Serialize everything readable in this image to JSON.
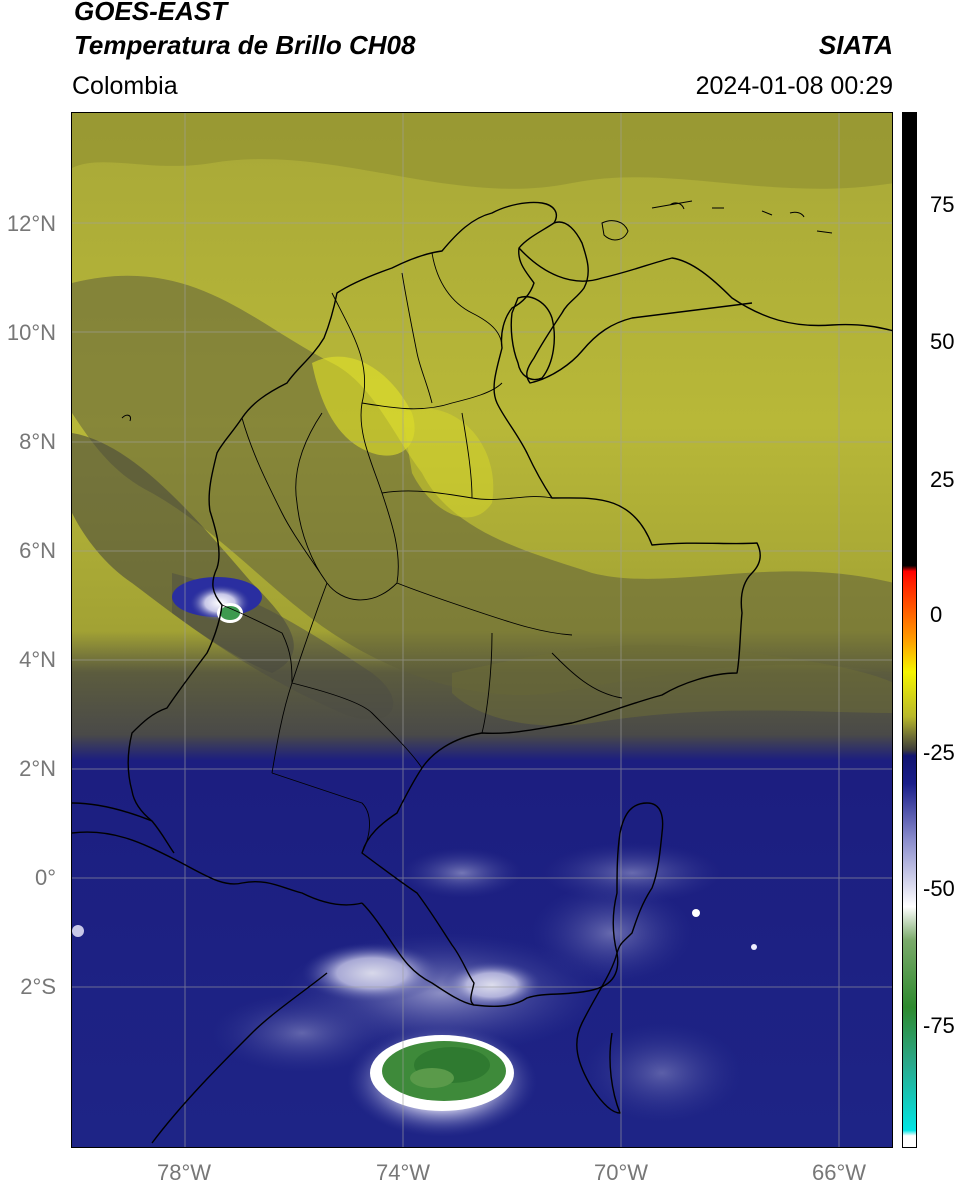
{
  "header": {
    "satellite": "GOES-EAST",
    "product": "Temperatura de Brillo CH08",
    "region": "Colombia",
    "agency": "SIATA",
    "datetime": "2024-01-08 00:29"
  },
  "axes": {
    "lat_labels": [
      "12°N",
      "10°N",
      "8°N",
      "6°N",
      "4°N",
      "2°N",
      "0°",
      "2°S"
    ],
    "lon_labels": [
      "78°W",
      "74°W",
      "70°W",
      "66°W"
    ]
  },
  "colorbar": {
    "ticks": [
      "75",
      "50",
      "25",
      "0",
      "-25",
      "-50",
      "-75"
    ],
    "range": [
      -95,
      90
    ],
    "stops": [
      {
        "v": -95,
        "c": "#ffffff"
      },
      {
        "v": -93,
        "c": "#ffffff"
      },
      {
        "v": -92,
        "c": "#00e5e5"
      },
      {
        "v": -80,
        "c": "#2aa88a"
      },
      {
        "v": -70,
        "c": "#2e8a2e"
      },
      {
        "v": -58,
        "c": "#7aaa6a"
      },
      {
        "v": -52,
        "c": "#ffffff"
      },
      {
        "v": -40,
        "c": "#8a8ccc"
      },
      {
        "v": -30,
        "c": "#1a1e8a"
      },
      {
        "v": -25,
        "c": "#111470"
      },
      {
        "v": -24,
        "c": "#3c3c3c"
      },
      {
        "v": -18,
        "c": "#b8b82a"
      },
      {
        "v": -10,
        "c": "#f5f500"
      },
      {
        "v": -4,
        "c": "#ff9a00"
      },
      {
        "v": 6,
        "c": "#ff2000"
      },
      {
        "v": 8,
        "c": "#ff0000"
      },
      {
        "v": 9,
        "c": "#000000"
      },
      {
        "v": 90,
        "c": "#000000"
      }
    ]
  },
  "colors": {
    "olive_light": "#c2c236",
    "olive_mid": "#9a9a32",
    "olive_dark": "#66662e",
    "gray_dark": "#4e4e40",
    "navy": "#1c2082",
    "navy_light": "#3a4098",
    "lavender": "#8a8cc8",
    "white": "#f2f2fa",
    "green": "#3e8a3a",
    "border": "#000000",
    "grid": "#9a9a9a",
    "axis_text": "#777777"
  }
}
